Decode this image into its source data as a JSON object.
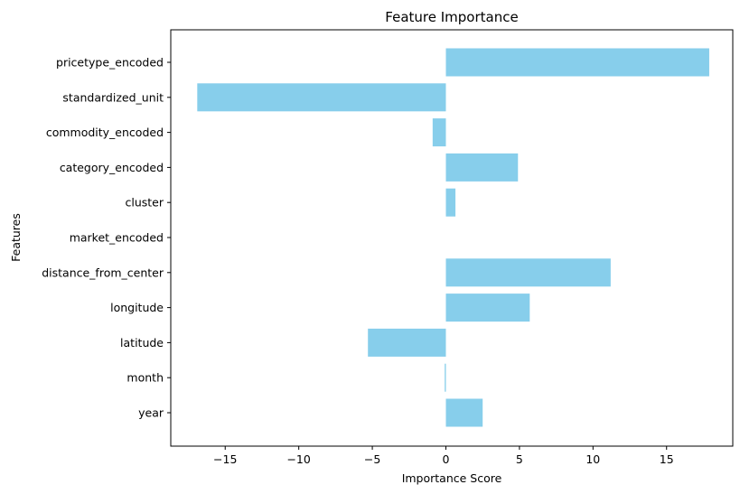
{
  "chart_data": {
    "type": "bar",
    "orientation": "horizontal",
    "title": "Feature Importance",
    "xlabel": "Importance Score",
    "ylabel": "Features",
    "categories": [
      "pricetype_encoded",
      "standardized_unit",
      "commodity_encoded",
      "category_encoded",
      "cluster",
      "market_encoded",
      "distance_from_center",
      "longitude",
      "latitude",
      "month",
      "year"
    ],
    "values": [
      17.9,
      -16.9,
      -0.9,
      4.9,
      0.65,
      0.0,
      11.2,
      5.7,
      -5.3,
      -0.08,
      2.5
    ],
    "xlim": [
      -18.7,
      19.5
    ],
    "xticks": [
      -15,
      -10,
      -5,
      0,
      5,
      10,
      15
    ],
    "xtick_labels": [
      "−15",
      "−10",
      "−5",
      "0",
      "5",
      "10",
      "15"
    ],
    "bar_color": "#87ceeb",
    "grid": false,
    "legend": "none"
  }
}
